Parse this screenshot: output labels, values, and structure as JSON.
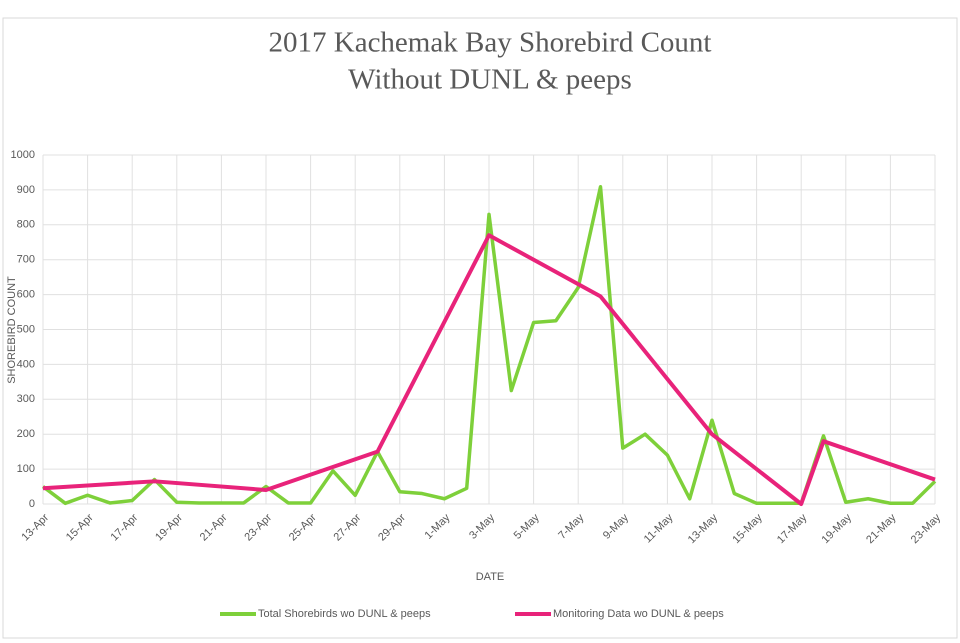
{
  "chart_data": {
    "type": "line",
    "title": "2017 Kachemak Bay Shorebird Count",
    "subtitle": "Without DUNL & peeps",
    "x_label": "DATE",
    "y_label": "SHOREBIRD COUNT",
    "categories": [
      "13-Apr",
      null,
      "15-Apr",
      null,
      "17-Apr",
      null,
      "19-Apr",
      null,
      "21-Apr",
      null,
      "23-Apr",
      null,
      "25-Apr",
      null,
      "27-Apr",
      null,
      "29-Apr",
      null,
      "1-May",
      null,
      "3-May",
      null,
      "5-May",
      null,
      "7-May",
      null,
      "9-May",
      null,
      "11-May",
      null,
      "13-May",
      null,
      "15-May",
      null,
      "17-May",
      null,
      "19-May",
      null,
      "21-May",
      null,
      "23-May"
    ],
    "series": [
      {
        "name": "Total Shorebirds wo DUNL & peeps",
        "color": "#7ed03a",
        "values": [
          50,
          2,
          25,
          3,
          10,
          70,
          5,
          3,
          3,
          3,
          50,
          3,
          3,
          95,
          25,
          150,
          35,
          30,
          15,
          45,
          830,
          325,
          520,
          525,
          620,
          909,
          160,
          200,
          140,
          15,
          240,
          30,
          2,
          2,
          2,
          195,
          5,
          15,
          2,
          2,
          65
        ]
      },
      {
        "name": "Monitoring Data wo DUNL & peeps",
        "color": "#e8237a",
        "values": [
          45,
          null,
          null,
          null,
          null,
          65,
          null,
          null,
          null,
          null,
          40,
          null,
          null,
          null,
          null,
          150,
          null,
          null,
          null,
          null,
          770,
          null,
          null,
          null,
          null,
          595,
          null,
          null,
          null,
          null,
          200,
          null,
          null,
          null,
          0,
          180,
          null,
          null,
          null,
          null,
          70
        ]
      }
    ],
    "span_gaps": true,
    "ylim": [
      0,
      1000
    ],
    "yticks": [
      0,
      100,
      200,
      300,
      400,
      500,
      600,
      700,
      800,
      900,
      1000
    ],
    "grid": true,
    "legend": "bottom"
  }
}
